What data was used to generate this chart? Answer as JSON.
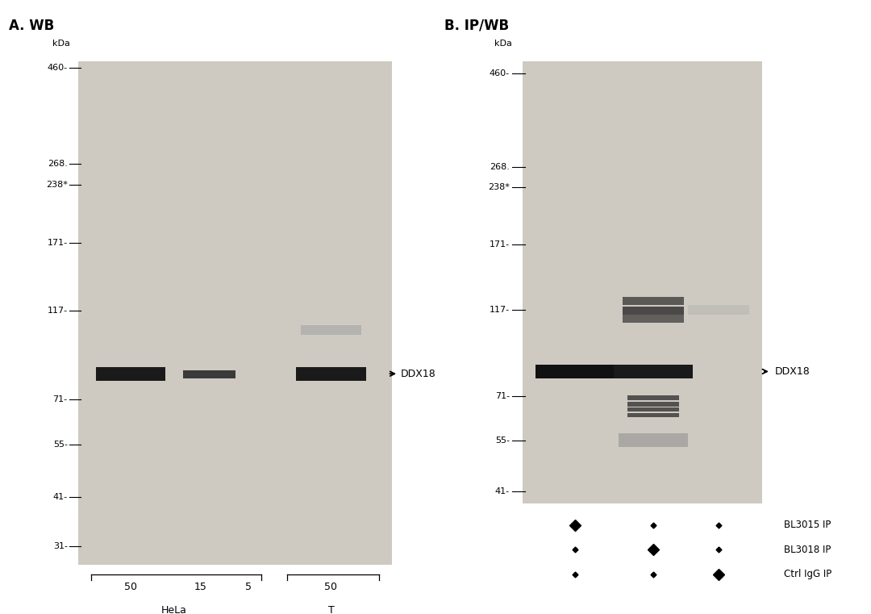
{
  "overall_bg": "#ffffff",
  "gel_bg_A": "#d8d4cc",
  "gel_bg_B": "#d0ccbf",
  "dark_band": "#111111",
  "panel_A_title": "A. WB",
  "panel_B_title": "B. IP/WB",
  "mw_markers_A": [
    460,
    268,
    238,
    171,
    117,
    71,
    55,
    41,
    31
  ],
  "mw_markers_B": [
    460,
    268,
    238,
    171,
    117,
    71,
    55,
    41
  ],
  "sample_labels_A": [
    "50",
    "15",
    "5",
    "50"
  ],
  "legend_B": [
    "BL3015 IP",
    "BL3018 IP",
    "Ctrl IgG IP"
  ]
}
